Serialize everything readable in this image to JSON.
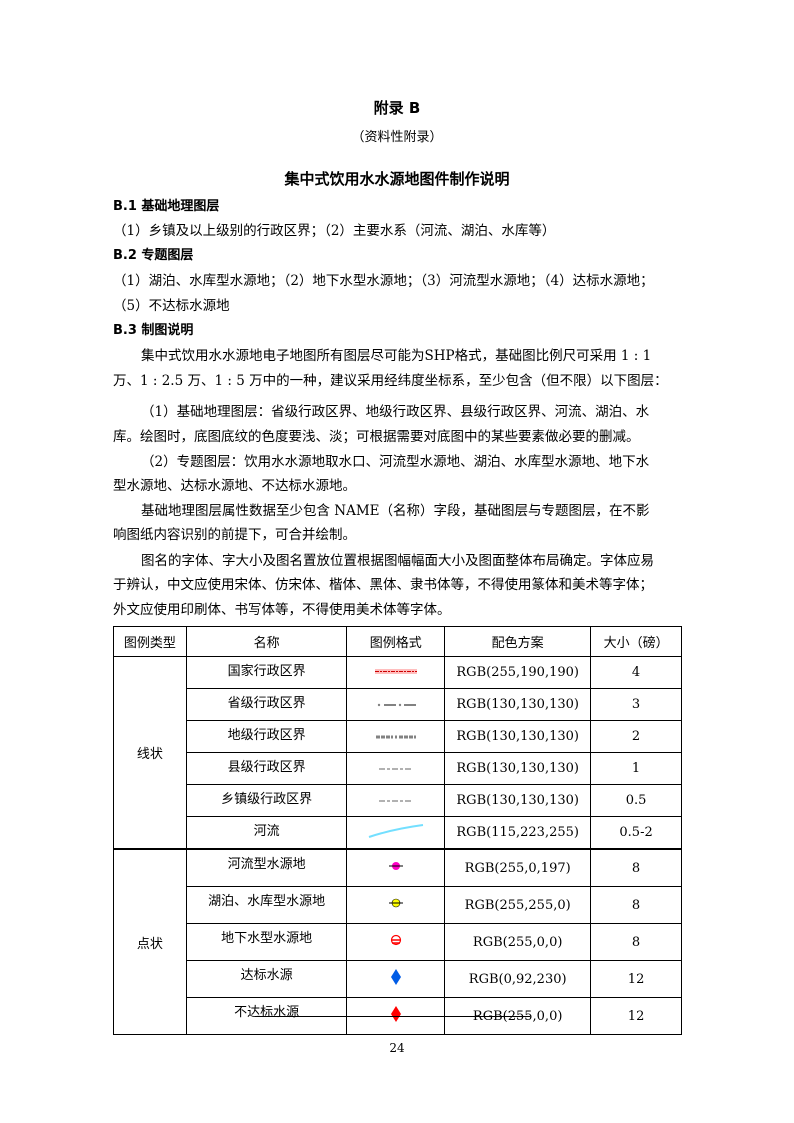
{
  "appendix_title": "附录 B",
  "appendix_subtitle": "（资料性附录）",
  "main_title": "集中式饮用水水源地图件制作说明",
  "sections": [
    {
      "heading": "B.1 基础地理图层",
      "lines": [
        "（1）乡镇及以上级别的行政区界；（2）主要水系（河流、湖泊、水库等）"
      ]
    },
    {
      "heading": "B.2 专题图层",
      "lines": [
        "（1）湖泊、水库型水源地；（2）地下水型水源地；（3）河流型水源地；（4）达标水源地；",
        "（5）不达标水源地"
      ]
    },
    {
      "heading": "B.3 制图说明",
      "lines": [
        "集中式饮用水水源地电子地图所有图层尽可能为SHP格式，基础图比例尺可采用 1 : 1",
        "万、1 : 2.5 万、1 : 5 万中的一种，建议采用经纬度坐标系，至少包含（但不限）以下图层：",
        "（1）基础地理图层：省级行政区界、地级行政区界、县级行政区界、河流、湖泊、水",
        "库。绘图时，底图底纹的色度要浅、淡；可根据需要对底图中的某些要素做必要的删减。",
        "（2）专题图层：饮用水水源地取水口、河流型水源地、湖泊、水库型水源地、地下水",
        "型水源地、达标水源地、不达标水源地。",
        "基础地理图层属性数据至少包含 NAME（名称）字段，基础图层与专题图层，在不影",
        "响图纸内容识别的前提下，可合并绘制。",
        "图名的字体、字大小及图名置放位置根据图幅幅面大小及图面整体布局确定。字体应易",
        "于辨认，中文应使用宋体、仿宋体、楷体、黑体、隶书体等，不得使用篆体和美术等字体；",
        "外文应使用印刷体、书写体等，不得使用美术体等字体。"
      ]
    }
  ],
  "table": {
    "headers": [
      "图例类型",
      "名称",
      "图例格式",
      "配色方案",
      "大小（磅）"
    ],
    "groups": [
      {
        "type": "线状",
        "rows": [
          {
            "name": "国家行政区界",
            "symbol": "national-boundary",
            "color": "RGB(255,190,190)",
            "size": "4"
          },
          {
            "name": "省级行政区界",
            "symbol": "province-boundary",
            "color": "RGB(130,130,130)",
            "size": "3"
          },
          {
            "name": "地级行政区界",
            "symbol": "prefecture-boundary",
            "color": "RGB(130,130,130)",
            "size": "2"
          },
          {
            "name": "县级行政区界",
            "symbol": "county-boundary",
            "color": "RGB(130,130,130)",
            "size": "1"
          },
          {
            "name": "乡镇级行政区界",
            "symbol": "township-boundary",
            "color": "RGB(130,130,130)",
            "size": "0.5"
          },
          {
            "name": "河流",
            "symbol": "river",
            "color": "RGB(115,223,255)",
            "size": "0.5-2"
          }
        ]
      },
      {
        "type": "点状",
        "rows": [
          {
            "name": "河流型水源地",
            "symbol": "river-source",
            "color": "RGB(255,0,197)",
            "size": "8"
          },
          {
            "name": "湖泊、水库型水源地",
            "symbol": "lake-source",
            "color": "RGB(255,255,0)",
            "size": "8"
          },
          {
            "name": "地下水型水源地",
            "symbol": "groundwater-source",
            "color": "RGB(255,0,0)",
            "size": "8"
          },
          {
            "name": "达标水源",
            "symbol": "compliant-source",
            "color": "RGB(0,92,230)",
            "size": "12"
          },
          {
            "name": "不达标水源",
            "symbol": "noncompliant-source",
            "color": "RGB(255,0,0)",
            "size": "12"
          }
        ]
      }
    ]
  },
  "page_number": "24"
}
